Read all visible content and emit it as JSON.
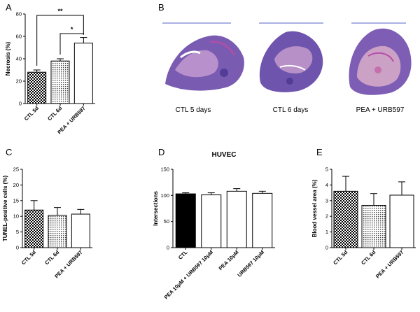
{
  "colors": {
    "black": "#000000",
    "white": "#ffffff",
    "tissue_purple": "#6a4fa3",
    "tissue_pink": "#c8a0c8",
    "scalebar": "#5566cc"
  },
  "panel_b": {
    "label": "B",
    "captions": [
      "CTL 5 days",
      "CTL 6 days",
      "PEA + URB597"
    ],
    "image_names": [
      "tissue-section-ctl-5-days",
      "tissue-section-ctl-6-days",
      "tissue-section-pea-urb597"
    ]
  },
  "chart_data": [
    {
      "panel": "A",
      "type": "bar",
      "title": "",
      "categories": [
        "CTL 5d",
        "CTL 6d",
        "PEA + URB597"
      ],
      "values": [
        28,
        38,
        54
      ],
      "errors": [
        2,
        2,
        5
      ],
      "fills": [
        "check",
        "dots",
        "white"
      ],
      "ylabel": "Necrosis (%)",
      "xlabel": "",
      "ylim": [
        0,
        80
      ],
      "yticks": [
        0,
        20,
        40,
        60,
        80
      ],
      "significance": [
        {
          "from": 0,
          "to": 2,
          "label": "**"
        },
        {
          "from": 1,
          "to": 2,
          "label": "*"
        }
      ]
    },
    {
      "panel": "C",
      "type": "bar",
      "title": "",
      "categories": [
        "CTL 5d",
        "CTL 6d",
        "PEA + URB597"
      ],
      "values": [
        12,
        10.3,
        10.7
      ],
      "errors": [
        3,
        2.5,
        1.5
      ],
      "fills": [
        "check",
        "dots",
        "white"
      ],
      "ylabel": "TUNEL-positive cells (%)",
      "xlabel": "",
      "ylim": [
        0,
        25
      ],
      "yticks": [
        0,
        5,
        10,
        15,
        20,
        25
      ],
      "significance": []
    },
    {
      "panel": "D",
      "type": "bar",
      "title": "HUVEC",
      "categories": [
        "CTL",
        "PEA 10μM + URB597 10μM",
        "PEA 10μM",
        "URB597 10μM"
      ],
      "values": [
        103,
        101,
        108,
        104
      ],
      "errors": [
        2,
        4,
        5,
        4
      ],
      "fills": [
        "black",
        "white",
        "white",
        "white"
      ],
      "ylabel": "Intersections",
      "xlabel": "",
      "ylim": [
        0,
        150
      ],
      "yticks": [
        0,
        50,
        100,
        150
      ],
      "significance": []
    },
    {
      "panel": "E",
      "type": "bar",
      "title": "",
      "categories": [
        "CTL 5d",
        "CTL 6d",
        "PEA + URB597"
      ],
      "values": [
        3.6,
        2.7,
        3.35
      ],
      "errors": [
        0.95,
        0.75,
        0.85
      ],
      "fills": [
        "check",
        "dots",
        "white"
      ],
      "ylabel": "Blood vessel area (%)",
      "xlabel": "",
      "ylim": [
        0,
        5
      ],
      "yticks": [
        0,
        1,
        2,
        3,
        4,
        5
      ],
      "significance": []
    }
  ]
}
